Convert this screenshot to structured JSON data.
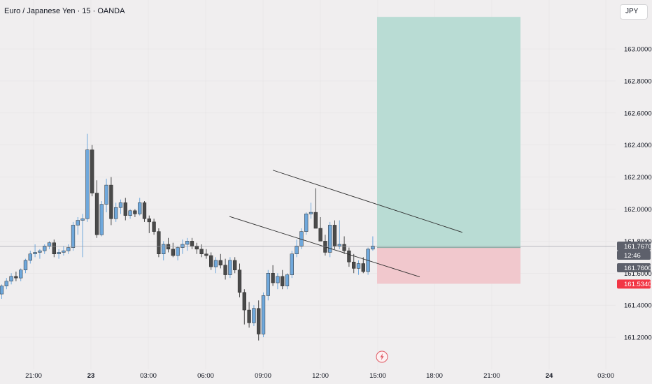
{
  "header": {
    "title": "Euro / Japanese Yen · 15 · OANDA"
  },
  "currency_button": {
    "label": "JPY"
  },
  "colors": {
    "up": "#6fa8dc",
    "down": "#4a4a4a",
    "profit_zone": "#b9dcd4",
    "loss_zone": "#f1c8cd",
    "stop_badge": "#f23645",
    "price_badge": "#5d606b",
    "trendline": "#2e2e2e",
    "grid": "#e4e2e3"
  },
  "chart_data": {
    "type": "candlestick",
    "symbol": "Euro / Japanese Yen · 15 · OANDA",
    "interval_minutes": 15,
    "ylim": [
      161.1,
      163.24
    ],
    "y_ticks": [
      "163.0000",
      "162.8000",
      "162.6000",
      "162.4000",
      "162.2000",
      "162.0000",
      "161.8000",
      "161.6000",
      "161.4000",
      "161.2000"
    ],
    "x_ticks": [
      "21:00",
      "23",
      "03:00",
      "06:00",
      "09:00",
      "12:00",
      "15:00",
      "18:00",
      "21:00",
      "24",
      "03:00"
    ],
    "price_labels": [
      {
        "value": "161.7670",
        "kind": "last"
      },
      {
        "value": "12:46",
        "kind": "countdown"
      },
      {
        "value": "161.7600",
        "kind": "entry"
      },
      {
        "value": "161.5340",
        "kind": "stop"
      }
    ],
    "candles": [
      [
        161.47,
        161.53,
        161.44,
        161.52
      ],
      [
        161.52,
        161.57,
        161.5,
        161.55
      ],
      [
        161.55,
        161.6,
        161.53,
        161.58
      ],
      [
        161.58,
        161.61,
        161.55,
        161.57
      ],
      [
        161.57,
        161.63,
        161.55,
        161.62
      ],
      [
        161.62,
        161.69,
        161.6,
        161.68
      ],
      [
        161.68,
        161.74,
        161.66,
        161.72
      ],
      [
        161.72,
        161.78,
        161.7,
        161.73
      ],
      [
        161.73,
        161.75,
        161.69,
        161.74
      ],
      [
        161.74,
        161.78,
        161.72,
        161.77
      ],
      [
        161.77,
        161.8,
        161.75,
        161.79
      ],
      [
        161.79,
        161.81,
        161.7,
        161.72
      ],
      [
        161.72,
        161.75,
        161.69,
        161.73
      ],
      [
        161.73,
        161.77,
        161.71,
        161.74
      ],
      [
        161.74,
        161.78,
        161.72,
        161.76
      ],
      [
        161.76,
        161.92,
        161.74,
        161.9
      ],
      [
        161.9,
        161.95,
        161.84,
        161.93
      ],
      [
        161.93,
        161.97,
        161.7,
        161.94
      ],
      [
        161.94,
        162.47,
        161.92,
        162.37
      ],
      [
        162.37,
        162.4,
        162.08,
        162.1
      ],
      [
        162.1,
        162.18,
        161.82,
        161.84
      ],
      [
        161.84,
        162.05,
        161.83,
        162.03
      ],
      [
        162.03,
        162.19,
        161.98,
        162.15
      ],
      [
        162.15,
        162.2,
        161.9,
        161.94
      ],
      [
        161.94,
        162.04,
        161.92,
        162.01
      ],
      [
        162.01,
        162.06,
        161.97,
        162.04
      ],
      [
        162.04,
        162.07,
        161.93,
        161.96
      ],
      [
        161.96,
        162.0,
        161.94,
        161.99
      ],
      [
        161.99,
        162.0,
        161.95,
        161.97
      ],
      [
        161.97,
        162.07,
        161.96,
        162.04
      ],
      [
        162.04,
        162.05,
        161.92,
        161.94
      ],
      [
        161.94,
        161.96,
        161.85,
        161.92
      ],
      [
        161.92,
        161.94,
        161.84,
        161.86
      ],
      [
        161.86,
        161.88,
        161.7,
        161.72
      ],
      [
        161.72,
        161.8,
        161.68,
        161.78
      ],
      [
        161.78,
        161.82,
        161.73,
        161.75
      ],
      [
        161.75,
        161.79,
        161.7,
        161.71
      ],
      [
        161.71,
        161.77,
        161.68,
        161.76
      ],
      [
        161.76,
        161.81,
        161.72,
        161.78
      ],
      [
        161.78,
        161.82,
        161.74,
        161.8
      ],
      [
        161.8,
        161.82,
        161.75,
        161.77
      ],
      [
        161.77,
        161.79,
        161.72,
        161.75
      ],
      [
        161.75,
        161.78,
        161.7,
        161.72
      ],
      [
        161.72,
        161.75,
        161.69,
        161.71
      ],
      [
        161.71,
        161.73,
        161.62,
        161.64
      ],
      [
        161.64,
        161.7,
        161.6,
        161.68
      ],
      [
        161.68,
        161.72,
        161.63,
        161.65
      ],
      [
        161.65,
        161.69,
        161.56,
        161.59
      ],
      [
        161.59,
        161.7,
        161.57,
        161.68
      ],
      [
        161.68,
        161.7,
        161.6,
        161.62
      ],
      [
        161.62,
        161.66,
        161.45,
        161.48
      ],
      [
        161.48,
        161.5,
        161.28,
        161.37
      ],
      [
        161.37,
        161.42,
        161.26,
        161.29
      ],
      [
        161.29,
        161.4,
        161.27,
        161.38
      ],
      [
        161.38,
        161.43,
        161.18,
        161.22
      ],
      [
        161.22,
        161.48,
        161.2,
        161.46
      ],
      [
        161.46,
        161.62,
        161.43,
        161.6
      ],
      [
        161.6,
        161.65,
        161.52,
        161.54
      ],
      [
        161.54,
        161.6,
        161.5,
        161.58
      ],
      [
        161.58,
        161.62,
        161.5,
        161.52
      ],
      [
        161.52,
        161.6,
        161.5,
        161.59
      ],
      [
        161.59,
        161.74,
        161.57,
        161.72
      ],
      [
        161.72,
        161.81,
        161.7,
        161.77
      ],
      [
        161.77,
        161.88,
        161.75,
        161.86
      ],
      [
        161.86,
        161.98,
        161.84,
        161.97
      ],
      [
        161.97,
        162.04,
        161.94,
        161.98
      ],
      [
        161.98,
        162.13,
        161.88,
        161.88
      ],
      [
        161.88,
        161.95,
        161.8,
        161.8
      ],
      [
        161.8,
        161.84,
        161.71,
        161.73
      ],
      [
        161.73,
        161.92,
        161.7,
        161.9
      ],
      [
        161.9,
        161.93,
        161.75,
        161.77
      ],
      [
        161.77,
        161.93,
        161.75,
        161.78
      ],
      [
        161.78,
        161.83,
        161.72,
        161.74
      ],
      [
        161.74,
        161.76,
        161.64,
        161.67
      ],
      [
        161.67,
        161.72,
        161.6,
        161.63
      ],
      [
        161.63,
        161.68,
        161.59,
        161.66
      ],
      [
        161.66,
        161.7,
        161.6,
        161.61
      ],
      [
        161.61,
        161.76,
        161.59,
        161.75
      ],
      [
        161.75,
        161.83,
        161.74,
        161.77
      ]
    ],
    "drawings": {
      "long_position": {
        "entry": 161.76,
        "stop": 161.534,
        "target": 163.2
      },
      "trend_channel": [
        {
          "from": [
            161.954,
            161.995
          ],
          "to": [
            161.577,
            161.541
          ]
        },
        {
          "from": [
            162.243,
            162.282
          ],
          "to": [
            161.855,
            161.802
          ]
        }
      ]
    }
  }
}
